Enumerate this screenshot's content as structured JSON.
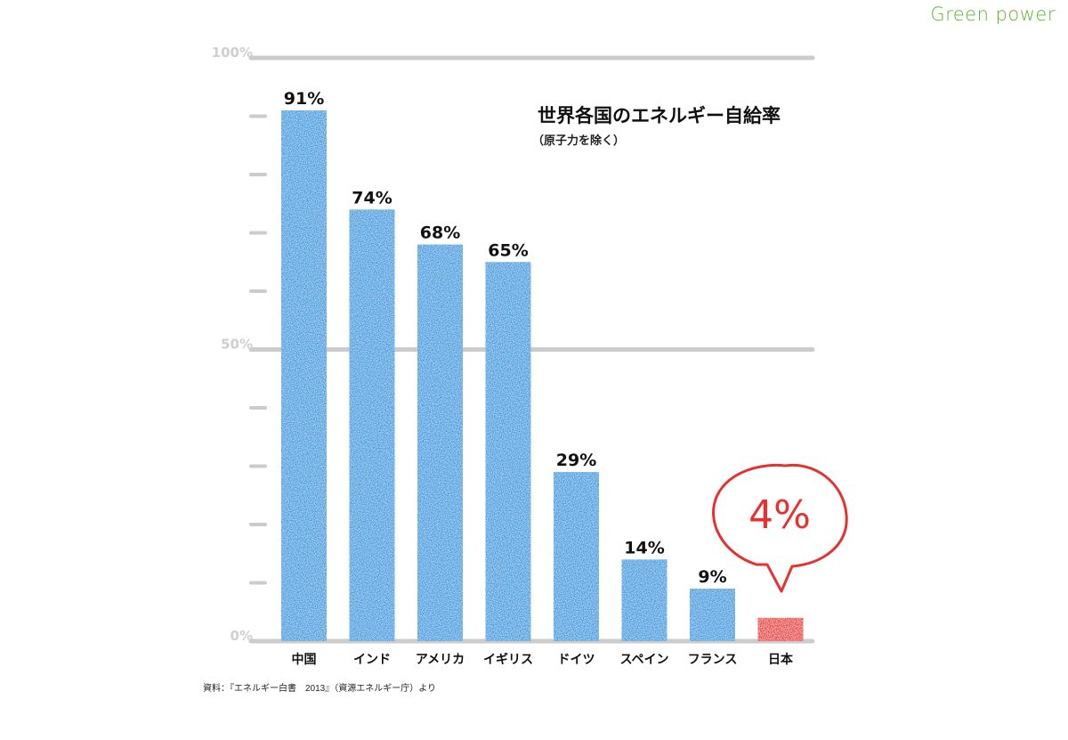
{
  "brand": "Green power",
  "title": "世界各国のエネルギー自給率",
  "subtitle": "（原子力を除く）",
  "source": "資料：『エネルギー白書　2013』（資源エネルギー庁）より",
  "callout": "4%",
  "colors": {
    "bar": "#2b9de0",
    "highlight": "#e8312f",
    "grid": "#cccccc",
    "brand": "#5cb531"
  },
  "chart_data": {
    "type": "bar",
    "title": "世界各国のエネルギー自給率",
    "subtitle": "（原子力を除く）",
    "categories": [
      "中国",
      "インド",
      "アメリカ",
      "イギリス",
      "ドイツ",
      "スペイン",
      "フランス",
      "日本"
    ],
    "values": [
      91,
      74,
      68,
      65,
      29,
      14,
      9,
      4
    ],
    "value_labels": [
      "91%",
      "74%",
      "68%",
      "65%",
      "29%",
      "14%",
      "9%",
      ""
    ],
    "ylim": [
      0,
      100
    ],
    "yticks": [
      {
        "value": 100,
        "label": "100%"
      },
      {
        "value": 50,
        "label": "50%"
      },
      {
        "value": 0,
        "label": "0%"
      }
    ],
    "minor_ticks": [
      10,
      20,
      30,
      40,
      60,
      70,
      80,
      90
    ],
    "highlight": "日本",
    "grid": true,
    "legend": "none"
  }
}
